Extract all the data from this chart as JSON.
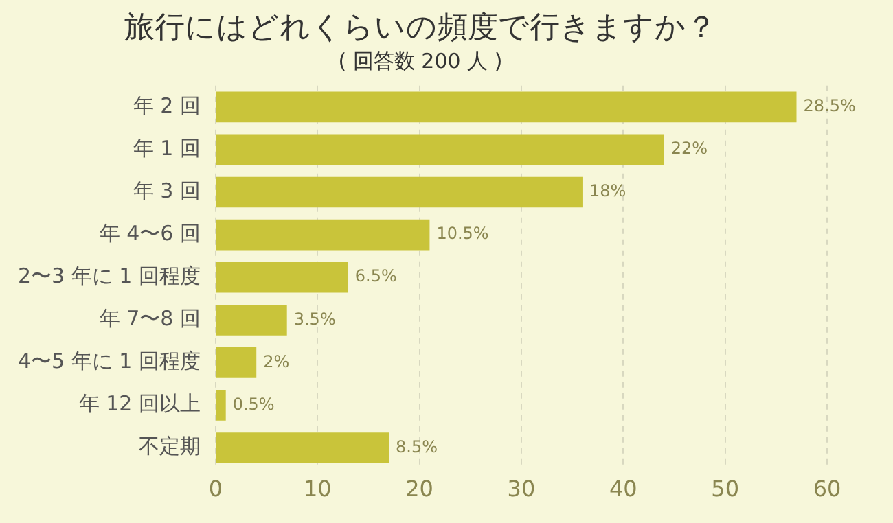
{
  "chart_data": {
    "type": "bar",
    "orientation": "horizontal",
    "title": "旅行にはどれくらいの頻度で行きますか？",
    "subtitle": "( 回答数 200 人 )",
    "categories": [
      "年 2 回",
      "年 1 回",
      "年 3 回",
      "年 4〜6 回",
      "2〜3 年に 1 回程度",
      "年 7〜8 回",
      "4〜5 年に 1 回程度",
      "年 12 回以上",
      "不定期"
    ],
    "values": [
      57,
      44,
      36,
      21,
      13,
      7,
      4,
      1,
      17
    ],
    "annotations": [
      {
        "text": "28.5%",
        "x": 57,
        "y": "年 2 回"
      },
      {
        "text": "22%",
        "x": 44,
        "y": "年 1 回"
      },
      {
        "text": "18%",
        "x": 36,
        "y": "年 3 回"
      },
      {
        "text": "10.5%",
        "x": 21,
        "y": "年 4〜6 回"
      },
      {
        "text": "6.5%",
        "x": 13,
        "y": "2〜3 年に 1 回程度"
      },
      {
        "text": "3.5%",
        "x": 7,
        "y": "年 7〜8 回"
      },
      {
        "text": "2%",
        "x": 4,
        "y": "4〜5 年に 1 回程度"
      },
      {
        "text": "0.5%",
        "x": 1,
        "y": "年 12 回以上"
      },
      {
        "text": "8.5%",
        "x": 17,
        "y": "不定期"
      }
    ],
    "color": "#c9c43a",
    "xlim": [
      0,
      60
    ],
    "xticks": [
      0,
      10,
      20,
      30,
      40,
      50,
      60
    ],
    "grid": "x",
    "legend": false
  }
}
